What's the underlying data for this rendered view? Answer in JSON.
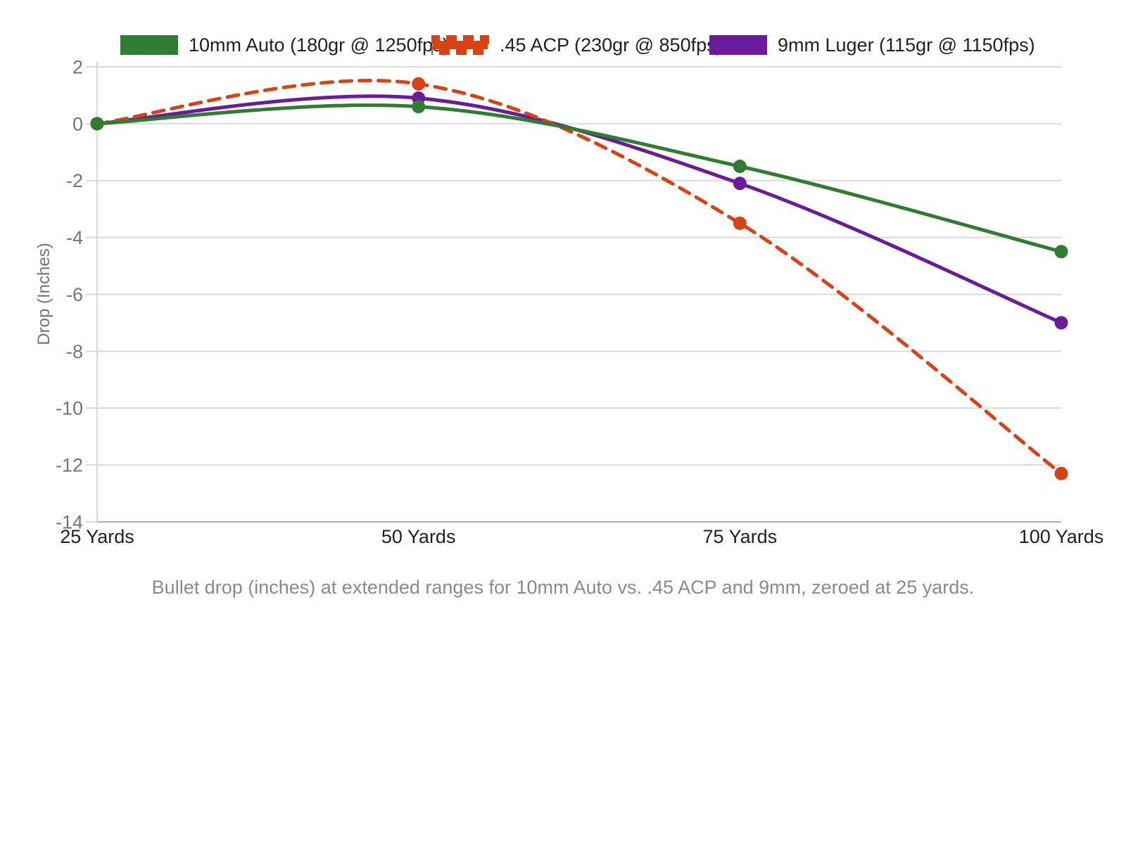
{
  "chart_data": {
    "type": "line",
    "x_categories": [
      "25 Yards",
      "50 Yards",
      "75 Yards",
      "100 Yards"
    ],
    "ylabel": "Drop (Inches)",
    "y_ticks": [
      2,
      0,
      -2,
      -4,
      -6,
      -8,
      -10,
      -12,
      -14
    ],
    "ylim": [
      -14,
      2
    ],
    "grid": true,
    "legend_position": "top",
    "curve": "smooth",
    "series": [
      {
        "id": "10mm-auto",
        "name": "10mm Auto (180gr @ 1250fps)",
        "color": "#2e7d32",
        "style": "solid",
        "values": [
          0,
          0.6,
          -1.5,
          -4.5
        ]
      },
      {
        "id": "45-acp",
        "name": ".45 ACP (230gr @ 850fps)",
        "color": "#d84315",
        "style": "dashed",
        "values": [
          0,
          1.4,
          -3.5,
          -12.3
        ]
      },
      {
        "id": "9mm-luger",
        "name": "9mm Luger (115gr @ 1150fps)",
        "color": "#6a1b9a",
        "style": "solid",
        "values": [
          0,
          0.9,
          -2.1,
          -7.0
        ]
      }
    ],
    "caption": "Bullet drop (inches) at extended ranges for 10mm Auto vs. .45 ACP and 9mm, zeroed at 25 yards.",
    "style_colors": {
      "gridline": "#d9d9d9",
      "baseline": "#b0b0b0",
      "y_tick_label": "#757575",
      "x_tick_label": "#212121",
      "axis_title": "#757575",
      "caption": "#8a8a8a",
      "legend_text": "#212121"
    }
  }
}
